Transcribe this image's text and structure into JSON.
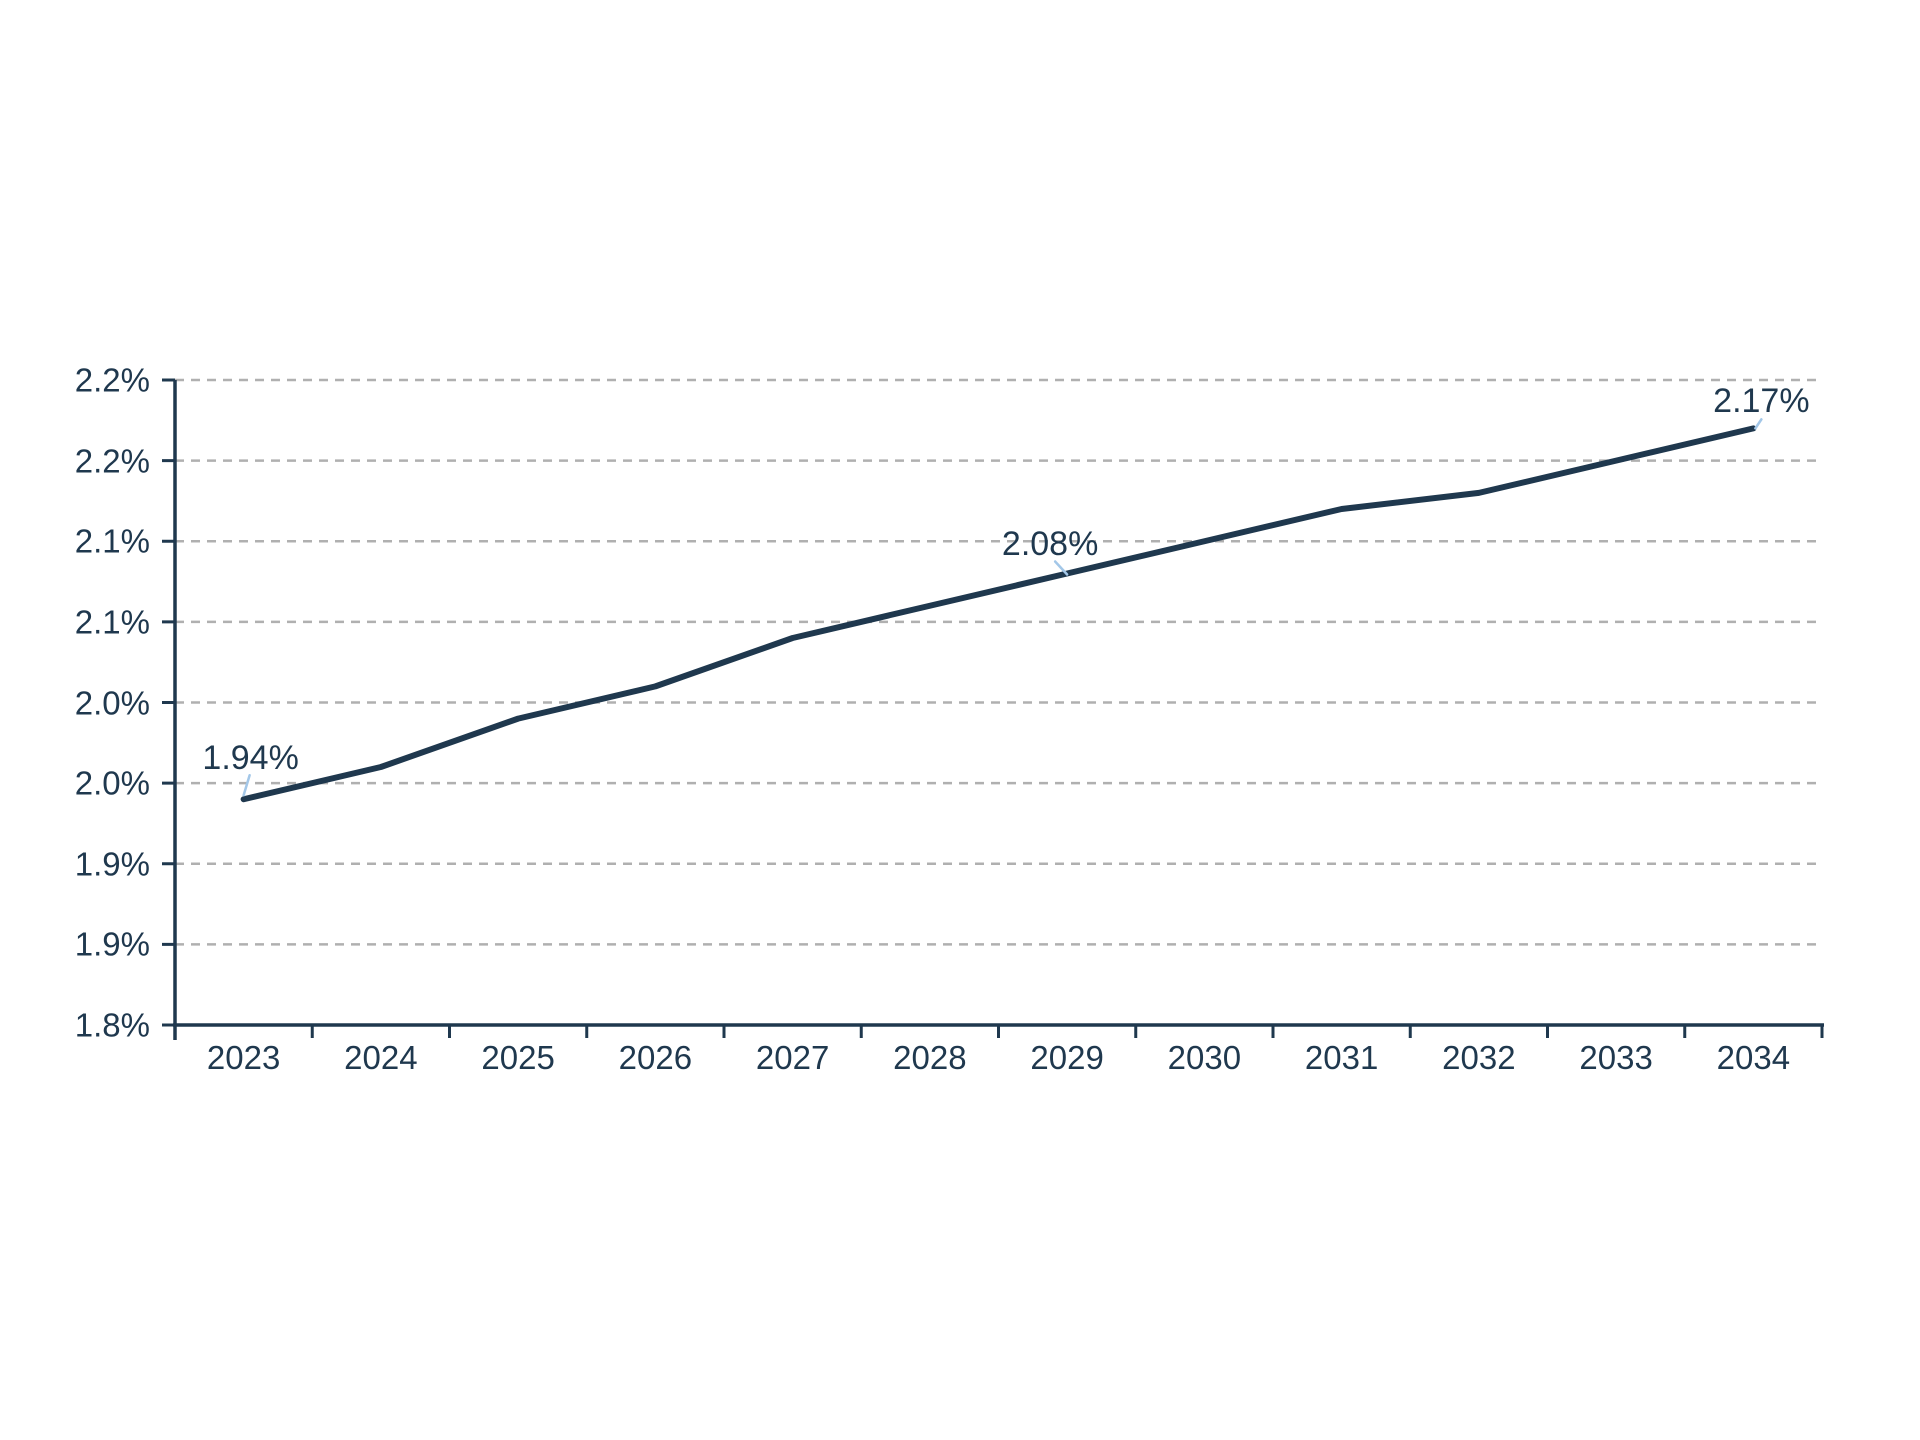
{
  "page": {
    "background": "#ffffff"
  },
  "colors": {
    "line": "#1f384e",
    "text": "#1f384e",
    "axis": "#1f384e",
    "gridline": "#b0b0b0",
    "leader": "#a3c7e8"
  },
  "chart_data": {
    "type": "line",
    "title": "",
    "xlabel": "",
    "ylabel": "",
    "categories": [
      "2023",
      "2024",
      "2025",
      "2026",
      "2027",
      "2028",
      "2029",
      "2030",
      "2031",
      "2032",
      "2033",
      "2034"
    ],
    "series": [
      {
        "name": "",
        "values": [
          1.94,
          1.96,
          1.99,
          2.01,
          2.04,
          2.06,
          2.08,
          2.1,
          2.12,
          2.13,
          2.15,
          2.17
        ]
      }
    ],
    "ylim": [
      1.8,
      2.2
    ],
    "y_tick_step": 0.05,
    "y_ticks": [
      {
        "value": 2.2,
        "label": "2.2%"
      },
      {
        "value": 2.15,
        "label": "2.2%"
      },
      {
        "value": 2.1,
        "label": "2.1%"
      },
      {
        "value": 2.05,
        "label": "2.1%"
      },
      {
        "value": 2.0,
        "label": "2.0%"
      },
      {
        "value": 1.95,
        "label": "2.0%"
      },
      {
        "value": 1.9,
        "label": "1.9%"
      },
      {
        "value": 1.85,
        "label": "1.9%"
      },
      {
        "value": 1.8,
        "label": "1.8%"
      }
    ],
    "data_labels": [
      {
        "category": "2023",
        "index": 0,
        "text": "1.94%"
      },
      {
        "category": "2029",
        "index": 6,
        "text": "2.08%"
      },
      {
        "category": "2034",
        "index": 11,
        "text": "2.17%"
      }
    ],
    "grid": {
      "horizontal": true,
      "vertical": false,
      "style": "dashed"
    },
    "legend": {
      "visible": false
    }
  }
}
